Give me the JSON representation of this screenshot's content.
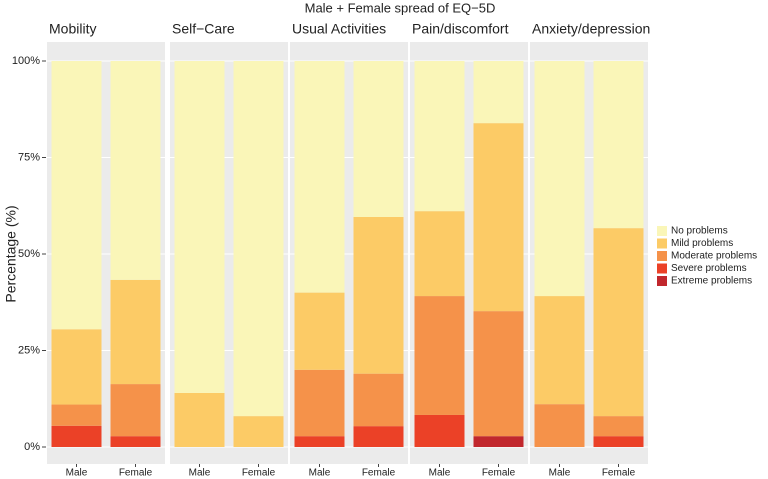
{
  "chart_data": {
    "type": "bar",
    "stacked": true,
    "title": "Male + Female spread of EQ−5D",
    "ylabel": "Percentage (%)",
    "ylim": [
      0,
      100
    ],
    "yticks": [
      {
        "value": 0,
        "label": "0%"
      },
      {
        "value": 25,
        "label": "25%"
      },
      {
        "value": 50,
        "label": "50%"
      },
      {
        "value": 75,
        "label": "75%"
      },
      {
        "value": 100,
        "label": "100%"
      }
    ],
    "grid": true,
    "legend": "right",
    "facets": [
      {
        "title": "Mobility",
        "categories": [
          "Male",
          "Female"
        ]
      },
      {
        "title": "Self−Care",
        "categories": [
          "Male",
          "Female"
        ]
      },
      {
        "title": "Usual Activities",
        "categories": [
          "Male",
          "Female"
        ]
      },
      {
        "title": "Pain/discomfort",
        "categories": [
          "Male",
          "Female"
        ]
      },
      {
        "title": "Anxiety/depression",
        "categories": [
          "Male",
          "Female"
        ]
      }
    ],
    "series": [
      {
        "name": "No problems",
        "color": "#faf6b8",
        "values": [
          [
            69.5,
            56.7
          ],
          [
            86,
            92
          ],
          [
            60,
            40.4
          ],
          [
            38.9,
            16.1
          ],
          [
            60.9,
            43.3
          ]
        ]
      },
      {
        "name": "Mild problems",
        "color": "#fccb66",
        "values": [
          [
            19.5,
            27
          ],
          [
            14,
            8
          ],
          [
            20,
            40.6
          ],
          [
            22,
            48.7
          ],
          [
            28,
            48.7
          ]
        ]
      },
      {
        "name": "Moderate problems",
        "color": "#f5924a",
        "values": [
          [
            5.5,
            13.5
          ],
          [
            0,
            0
          ],
          [
            17.2,
            13.6
          ],
          [
            30.8,
            32.4
          ],
          [
            11.1,
            5.2
          ]
        ]
      },
      {
        "name": "Severe problems",
        "color": "#eb4127",
        "values": [
          [
            5.5,
            2.8
          ],
          [
            0,
            0
          ],
          [
            2.8,
            5.4
          ],
          [
            8.3,
            0
          ],
          [
            0,
            2.8
          ]
        ]
      },
      {
        "name": "Extreme problems",
        "color": "#c1272d",
        "values": [
          [
            0,
            0
          ],
          [
            0,
            0
          ],
          [
            0,
            0
          ],
          [
            0,
            2.8
          ],
          [
            0,
            0
          ]
        ]
      }
    ]
  }
}
